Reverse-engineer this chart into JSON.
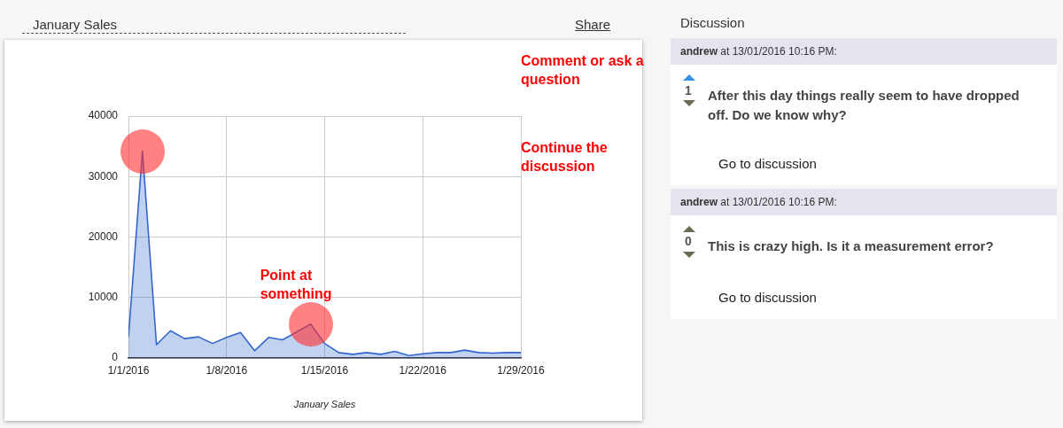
{
  "chart_data": {
    "type": "area",
    "title": "January Sales",
    "xlabel": "January Sales",
    "x": [
      "2016-01-01",
      "2016-01-02",
      "2016-01-03",
      "2016-01-04",
      "2016-01-05",
      "2016-01-06",
      "2016-01-07",
      "2016-01-08",
      "2016-01-09",
      "2016-01-10",
      "2016-01-11",
      "2016-01-12",
      "2016-01-13",
      "2016-01-14",
      "2016-01-15",
      "2016-01-16",
      "2016-01-17",
      "2016-01-18",
      "2016-01-19",
      "2016-01-20",
      "2016-01-21",
      "2016-01-22",
      "2016-01-23",
      "2016-01-24",
      "2016-01-25",
      "2016-01-26",
      "2016-01-27",
      "2016-01-28",
      "2016-01-29"
    ],
    "values": [
      3400,
      34200,
      2200,
      4500,
      3200,
      3500,
      2400,
      3400,
      4200,
      1200,
      3400,
      3000,
      4300,
      5600,
      2400,
      900,
      600,
      900,
      600,
      1100,
      400,
      700,
      900,
      900,
      1300,
      900,
      800,
      900,
      900
    ],
    "color": "#3366cc",
    "xlim": [
      "2016-01-01",
      "2016-01-29"
    ],
    "xticks": [
      {
        "value": "2016-01-01",
        "label": "1/1/2016"
      },
      {
        "value": "2016-01-08",
        "label": "1/8/2016"
      },
      {
        "value": "2016-01-15",
        "label": "1/15/2016"
      },
      {
        "value": "2016-01-22",
        "label": "1/22/2016"
      },
      {
        "value": "2016-01-29",
        "label": "1/29/2016"
      }
    ],
    "ylim": [
      0,
      40000
    ],
    "yticks": [
      0,
      10000,
      20000,
      30000,
      40000
    ],
    "grid": true,
    "marker": "none",
    "annotations": [
      "Share",
      "Discussion",
      "andrew at 13/01/2016 10:16 PM:",
      "1",
      "After this day things really seem to have dropped off. Do we know why?",
      "Go to discussion",
      "andrew at 13/01/2016 10:16 PM:",
      "0",
      "This is crazy high. Is it a measurement error?",
      "Go to discussion",
      "Comment or ask a question",
      "Continue the discussion",
      {
        "text": "Point at something",
        "x": "2016-01-14",
        "y": 5600
      }
    ]
  }
}
